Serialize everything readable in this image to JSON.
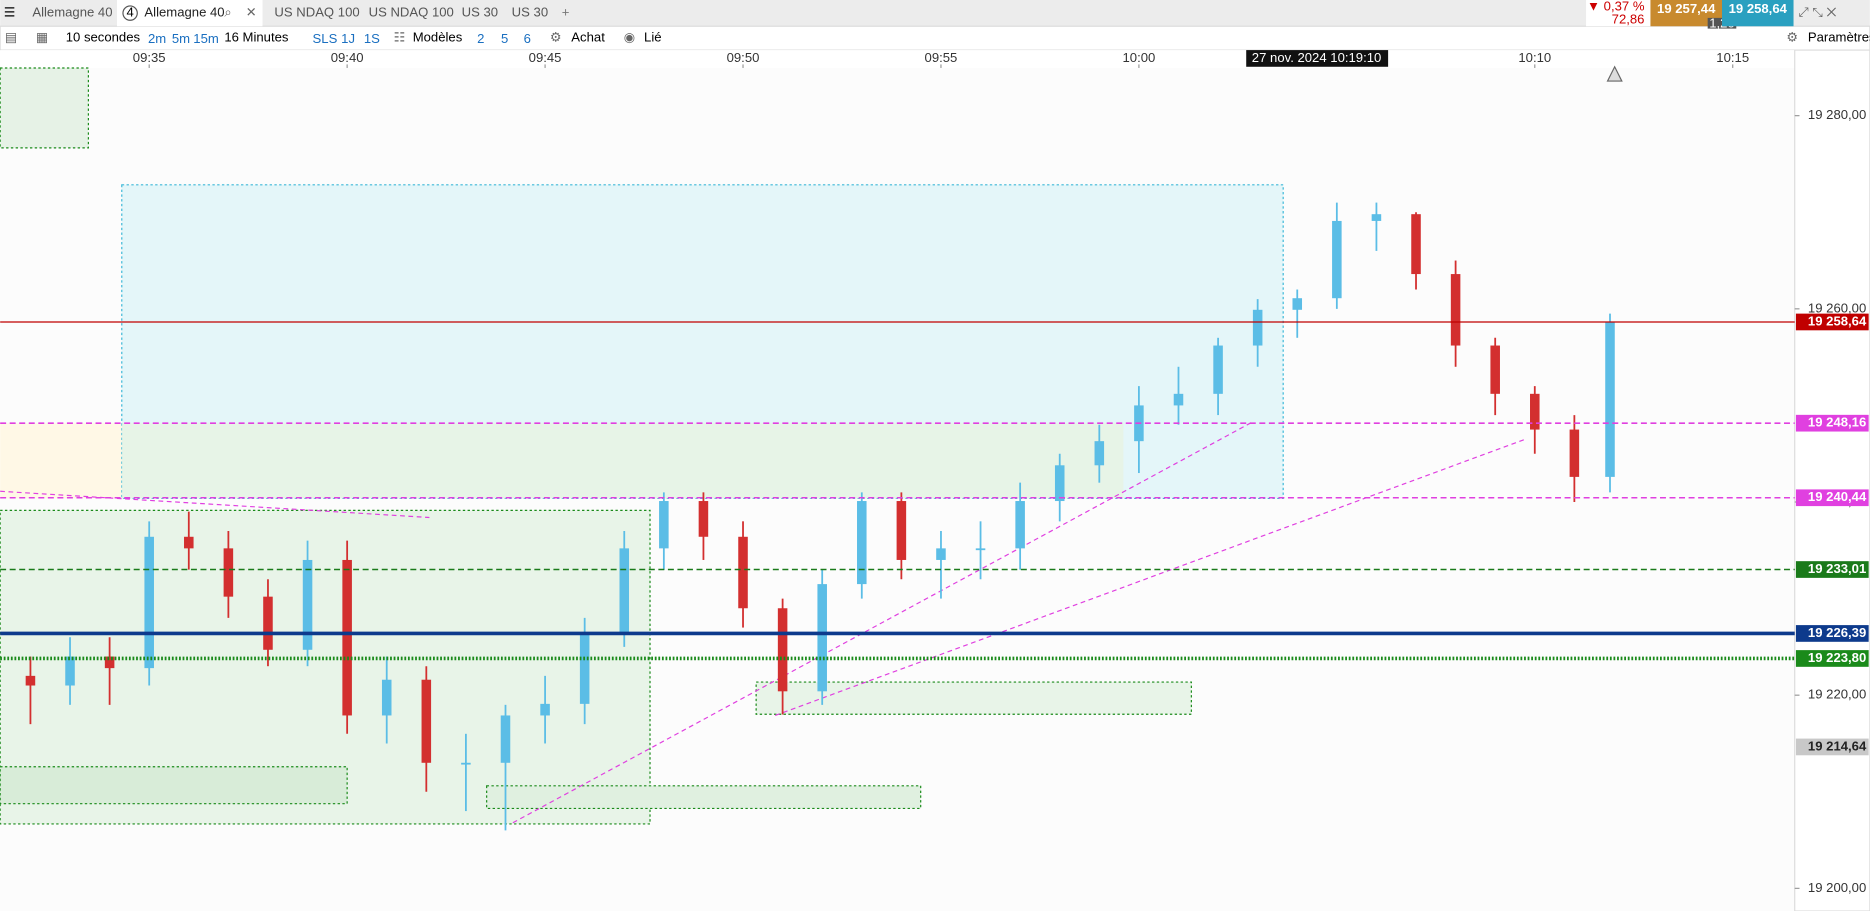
{
  "tabs": [
    "Allemagne 40",
    "Allemagne 40",
    "US NDAQ 100",
    "US NDAQ 100",
    "US 30",
    "US 30"
  ],
  "active_tab_badge": "4",
  "quote": {
    "change": "▼ 0,37 %",
    "points": "72,86",
    "bid": "19 257,44",
    "spread": "1,20",
    "ask": "19 258,64"
  },
  "toolbar": {
    "interval": "10 secondes",
    "quick": [
      "2m",
      "5m",
      "15m"
    ],
    "span": "16 Minutes",
    "periods": [
      "SLS",
      "1J",
      "1S"
    ],
    "templates": "Modèles",
    "layouts": [
      "2",
      "5",
      "6"
    ],
    "order": "Achat",
    "link": "Lié",
    "settings": "Paramètres"
  },
  "chart": {
    "crosshair_label": "27 nov. 2024 10:19:10",
    "xticks": [
      {
        "value": 575,
        "label": "09:35"
      },
      {
        "value": 580,
        "label": "09:40"
      },
      {
        "value": 585,
        "label": "09:45"
      },
      {
        "value": 590,
        "label": "09:50"
      },
      {
        "value": 595,
        "label": "09:55"
      },
      {
        "value": 600,
        "label": "10:00"
      },
      {
        "value": 610,
        "label": "10:10"
      },
      {
        "value": 615,
        "label": "10:15"
      }
    ],
    "yticks": [
      {
        "value": 19280,
        "label": "19 280,00"
      },
      {
        "value": 19260,
        "label": "19 260,00"
      },
      {
        "value": 19240,
        "label": "19 240,00"
      },
      {
        "value": 19220,
        "label": "19 220,00"
      },
      {
        "value": 19200,
        "label": "19 200,00"
      }
    ],
    "levels": [
      {
        "value": 19258.64,
        "label": "19 258,64",
        "color": "#c00000",
        "style": "solid"
      },
      {
        "value": 19248.16,
        "label": "19 248,16",
        "color": "#e040e0",
        "style": "dashed"
      },
      {
        "value": 19240.44,
        "label": "19 240,44",
        "color": "#e040e0",
        "style": "dashed"
      },
      {
        "value": 19233.01,
        "label": "19 233,01",
        "color": "#1a7a1a",
        "style": "dashed"
      },
      {
        "value": 19226.39,
        "label": "19 226,39",
        "color": "#0d3a8c",
        "style": "thick"
      },
      {
        "value": 19223.8,
        "label": "19 223,80",
        "color": "#1a8a1a",
        "style": "dotted"
      },
      {
        "value": 19214.64,
        "label": "19 214,64",
        "color": "#c8c8c8",
        "style": "none"
      }
    ],
    "up_color": "#5bbde6",
    "down_color": "#d32f2f",
    "candles": [
      [
        572,
        19222,
        19224,
        19217,
        19221
      ],
      [
        573,
        19221,
        19226,
        19219,
        19224
      ],
      [
        574,
        19224,
        19226,
        19219,
        19222.8
      ],
      [
        575,
        19222.8,
        19238,
        19221,
        19236.4
      ],
      [
        576,
        19236.4,
        19239,
        19233,
        19235.2
      ],
      [
        577,
        19235.2,
        19237,
        19228,
        19230.2
      ],
      [
        578,
        19230.2,
        19232,
        19223,
        19224.7
      ],
      [
        579,
        19224.7,
        19236,
        19223,
        19234
      ],
      [
        580,
        19234,
        19236,
        19216,
        19217.9
      ],
      [
        581,
        19217.9,
        19224,
        19215,
        19221.6
      ],
      [
        582,
        19221.6,
        19223,
        19210,
        19213
      ],
      [
        583,
        19213,
        19216,
        19208,
        19213
      ],
      [
        584,
        19213,
        19219,
        19206,
        19217.9
      ],
      [
        585,
        19217.9,
        19222,
        19215,
        19219.1
      ],
      [
        586,
        19219.1,
        19228,
        19217,
        19226.5
      ],
      [
        587,
        19226.5,
        19237,
        19225,
        19235.2
      ],
      [
        588,
        19235.2,
        19241,
        19233,
        19240.1
      ],
      [
        589,
        19240.1,
        19241,
        19234,
        19236.4
      ],
      [
        590,
        19236.4,
        19238,
        19227,
        19229
      ],
      [
        591,
        19229,
        19230,
        19218,
        19220.4
      ],
      [
        592,
        19220.4,
        19233,
        19219,
        19231.5
      ],
      [
        593,
        19231.5,
        19241,
        19230,
        19240.1
      ],
      [
        594,
        19240.1,
        19241,
        19232,
        19234
      ],
      [
        595,
        19234,
        19237,
        19230,
        19235.2
      ],
      [
        596,
        19235.2,
        19238,
        19232,
        19235.2
      ],
      [
        597,
        19235.2,
        19242,
        19233,
        19240.1
      ],
      [
        598,
        19240.1,
        19245,
        19238,
        19243.8
      ],
      [
        599,
        19243.8,
        19248,
        19242,
        19246.3
      ],
      [
        600,
        19246.3,
        19252,
        19243,
        19250
      ],
      [
        601,
        19250,
        19254,
        19248,
        19251.2
      ],
      [
        602,
        19251.2,
        19257,
        19249,
        19256.2
      ],
      [
        603,
        19256.2,
        19261,
        19254,
        19259.9
      ],
      [
        604,
        19259.9,
        19262,
        19257,
        19261.1
      ],
      [
        605,
        19261.1,
        19271,
        19260,
        19269.1
      ],
      [
        606,
        19269.1,
        19271,
        19266,
        19269.8
      ],
      [
        607,
        19269.8,
        19270,
        19262,
        19263.6
      ],
      [
        608,
        19263.6,
        19265,
        19254,
        19256.2
      ],
      [
        609,
        19256.2,
        19257,
        19249,
        19251.2
      ],
      [
        610,
        19251.2,
        19252,
        19245,
        19247.5
      ],
      [
        611,
        19247.5,
        19249,
        19240,
        19242.6
      ],
      [
        611.9,
        19242.6,
        19259.5,
        19241,
        19258.6
      ]
    ]
  }
}
